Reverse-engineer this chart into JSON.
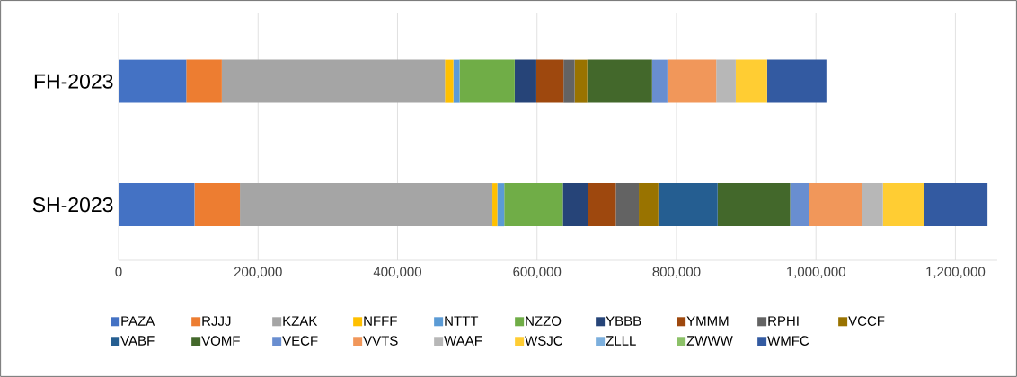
{
  "chart_data": {
    "type": "bar",
    "orientation": "horizontal",
    "stacked": true,
    "categories": [
      "FH-2023",
      "SH-2023"
    ],
    "series": [
      {
        "name": "PAZA",
        "color": "#4472c4",
        "values": [
          97000,
          109000
        ]
      },
      {
        "name": "RJJJ",
        "color": "#ed7d31",
        "values": [
          51000,
          65000
        ]
      },
      {
        "name": "KZAK",
        "color": "#a5a5a5",
        "values": [
          320000,
          362000
        ]
      },
      {
        "name": "NFFF",
        "color": "#ffc000",
        "values": [
          12000,
          7000
        ]
      },
      {
        "name": "NTTT",
        "color": "#5b9bd5",
        "values": [
          9000,
          10000
        ]
      },
      {
        "name": "NZZO",
        "color": "#70ad47",
        "values": [
          79000,
          84000
        ]
      },
      {
        "name": "YBBB",
        "color": "#264478",
        "values": [
          31000,
          36000
        ]
      },
      {
        "name": "YMMM",
        "color": "#9e480e",
        "values": [
          39000,
          40000
        ]
      },
      {
        "name": "RPHI",
        "color": "#636363",
        "values": [
          16000,
          33000
        ]
      },
      {
        "name": "VCCF",
        "color": "#997300",
        "values": [
          18000,
          28000
        ]
      },
      {
        "name": "VABF",
        "color": "#255e91",
        "values": [
          0,
          85000
        ]
      },
      {
        "name": "VOMF",
        "color": "#43682b",
        "values": [
          93000,
          104000
        ]
      },
      {
        "name": "VECF",
        "color": "#698ed0",
        "values": [
          22000,
          27000
        ]
      },
      {
        "name": "VVTS",
        "color": "#f1975a",
        "values": [
          70000,
          76000
        ]
      },
      {
        "name": "WAAF",
        "color": "#b7b7b7",
        "values": [
          28000,
          30000
        ]
      },
      {
        "name": "WSJC",
        "color": "#ffcd33",
        "values": [
          45000,
          59000
        ]
      },
      {
        "name": "ZLLL",
        "color": "#7cafdd",
        "values": [
          0,
          0
        ]
      },
      {
        "name": "ZWWW",
        "color": "#8cc168",
        "values": [
          0,
          0
        ]
      },
      {
        "name": "WMFC",
        "color": "#335aa1",
        "values": [
          85000,
          91000
        ]
      }
    ],
    "xlim": [
      0,
      1260000
    ],
    "xticks": [
      0,
      {
        "value": 200000,
        "label": "200,000"
      },
      {
        "value": 400000,
        "label": "400,000"
      },
      {
        "value": 600000,
        "label": "600,000"
      },
      {
        "value": 800000,
        "label": "800,000"
      },
      {
        "value": 1000000,
        "label": "1,000,000"
      },
      {
        "value": 1200000,
        "label": "1,200,000"
      }
    ],
    "grid": "x",
    "legend": "bottom"
  }
}
